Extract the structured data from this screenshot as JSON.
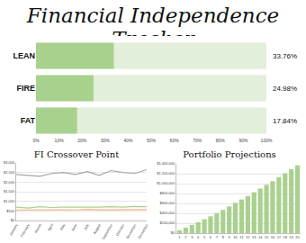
{
  "title": "Financial Independence Tracker",
  "chart_data": [
    {
      "type": "bar",
      "orientation": "horizontal",
      "categories": [
        "LEAN",
        "FIRE",
        "FAT"
      ],
      "values": [
        33.76,
        24.98,
        17.84
      ],
      "value_labels": [
        "33.76%",
        "24.98%",
        "17.84%"
      ],
      "data_labels": true,
      "color": "#a9d18e",
      "grid": false,
      "xlim": [
        0,
        100
      ],
      "xticks": [
        {
          "value": 0,
          "label": "0%"
        },
        {
          "value": 10,
          "label": "10%"
        },
        {
          "value": 20,
          "label": "20%"
        },
        {
          "value": 30,
          "label": "30%"
        },
        {
          "value": 40,
          "label": "40%"
        },
        {
          "value": 50,
          "label": "50%"
        },
        {
          "value": 60,
          "label": "60%"
        },
        {
          "value": 70,
          "label": "70%"
        },
        {
          "value": 80,
          "label": "80%"
        },
        {
          "value": 90,
          "label": "90%"
        },
        {
          "value": 100,
          "label": "100%"
        }
      ]
    },
    {
      "type": "line",
      "title": "FI Crossover Point",
      "grid": true,
      "categories": [
        "January",
        "February",
        "March",
        "April",
        "May",
        "June",
        "July",
        "August",
        "September",
        "October",
        "November",
        "December"
      ],
      "series": [
        {
          "color": "#a6a6a6",
          "values": [
            2400,
            2350,
            2300,
            2450,
            2500,
            2400,
            2550,
            2350,
            2600,
            2500,
            2450,
            2650
          ]
        },
        {
          "color": "#a9d18e",
          "values": [
            700,
            650,
            720,
            680,
            700,
            690,
            710,
            700,
            720,
            700,
            730,
            720
          ]
        },
        {
          "color": "#f4b183",
          "values": [
            550,
            560,
            540,
            570,
            560,
            550,
            580,
            560,
            570,
            560,
            580,
            570
          ]
        }
      ],
      "ylim": [
        0,
        3000
      ],
      "yticks": [
        {
          "value": 0,
          "label": "$0"
        },
        {
          "value": 500,
          "label": "$500"
        },
        {
          "value": 1000,
          "label": "$1,000"
        },
        {
          "value": 1500,
          "label": "$1,500"
        },
        {
          "value": 2000,
          "label": "$2,000"
        },
        {
          "value": 2500,
          "label": "$2,500"
        },
        {
          "value": 3000,
          "label": "$3,000"
        }
      ]
    },
    {
      "type": "bar",
      "title": "Portfolio Projections",
      "grid": true,
      "color": "#a9d18e",
      "categories": [
        "1",
        "2",
        "3",
        "4",
        "5",
        "6",
        "7",
        "8",
        "9",
        "10",
        "11",
        "12",
        "13",
        "14",
        "15",
        "16",
        "17",
        "18",
        "19",
        "20"
      ],
      "values": [
        60000,
        110000,
        165000,
        220000,
        280000,
        340000,
        405000,
        470000,
        540000,
        610000,
        680000,
        750000,
        825000,
        900000,
        975000,
        1050000,
        1130000,
        1210000,
        1290000,
        1370000
      ],
      "ylim": [
        0,
        1400000
      ],
      "yticks": [
        {
          "value": 0,
          "label": "$0"
        },
        {
          "value": 200000,
          "label": "$200,000"
        },
        {
          "value": 400000,
          "label": "$400,000"
        },
        {
          "value": 600000,
          "label": "$600,000"
        },
        {
          "value": 800000,
          "label": "$800,000"
        },
        {
          "value": 1000000,
          "label": "$1,000,000"
        },
        {
          "value": 1200000,
          "label": "$1,200,000"
        },
        {
          "value": 1400000,
          "label": "$1,400,000"
        }
      ]
    }
  ]
}
